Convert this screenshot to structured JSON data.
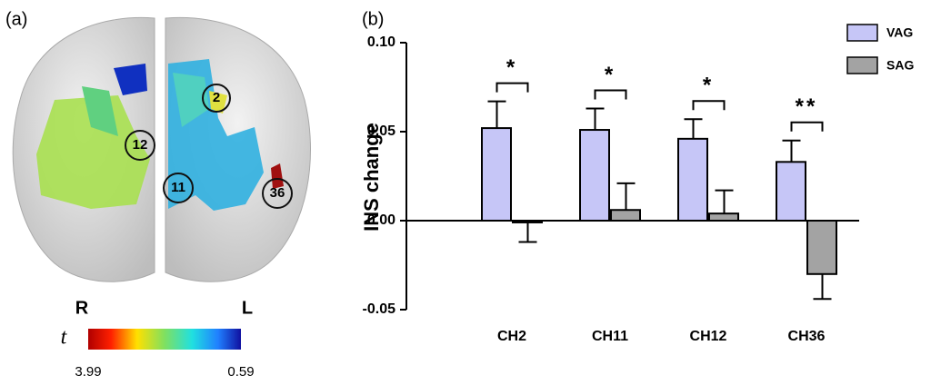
{
  "panel_a": {
    "label": "(a)",
    "channels": [
      "2",
      "12",
      "11",
      "36"
    ],
    "left_side": "R",
    "right_side": "L",
    "colorbar_title": "t",
    "colorbar_max": "3.99",
    "colorbar_min": "0.59"
  },
  "chart_data": {
    "type": "bar",
    "panel_label": "(b)",
    "y_label": "INS change",
    "categories": [
      "CH2",
      "CH11",
      "CH12",
      "CH36"
    ],
    "series": [
      {
        "name": "VAG",
        "color": "#c6c6f7",
        "values": [
          0.052,
          0.051,
          0.046,
          0.033
        ],
        "errors": [
          0.015,
          0.012,
          0.011,
          0.012
        ]
      },
      {
        "name": "SAG",
        "color": "#a3a3a3",
        "values": [
          -0.001,
          0.006,
          0.004,
          -0.03
        ],
        "errors": [
          0.011,
          0.015,
          0.013,
          0.014
        ]
      }
    ],
    "significance": [
      "*",
      "*",
      "*",
      "**"
    ],
    "ylim": [
      -0.05,
      0.1
    ],
    "yticks": [
      -0.05,
      {
        "value": 0,
        "label": "0.00"
      },
      0.05,
      {
        "value": 0.1,
        "label": "0.10"
      }
    ],
    "legend": "top-right"
  }
}
